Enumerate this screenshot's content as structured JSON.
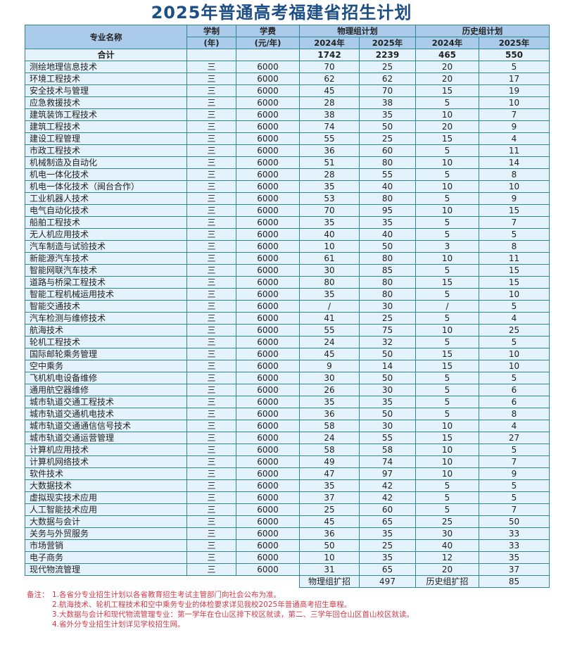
{
  "title": "2025年普通高考福建省招生计划",
  "header": {
    "name": "专业名称",
    "duration": "学制",
    "duration_unit": "(年)",
    "fee": "学费",
    "fee_unit": "(元/年)",
    "physics": "物理组计划",
    "history": "历史组计划",
    "y2024": "2024年",
    "y2025": "2025年"
  },
  "total": {
    "label": "合计",
    "phys2024": "1742",
    "phys2025": "2239",
    "hist2024": "465",
    "hist2025": "550"
  },
  "rows": [
    [
      "测绘地理信息技术",
      "三",
      "6000",
      "70",
      "25",
      "20",
      "5"
    ],
    [
      "环境工程技术",
      "三",
      "6000",
      "62",
      "62",
      "20",
      "17"
    ],
    [
      "安全技术与管理",
      "三",
      "6000",
      "45",
      "70",
      "15",
      "19"
    ],
    [
      "应急救援技术",
      "三",
      "6000",
      "28",
      "38",
      "5",
      "10"
    ],
    [
      "建筑装饰工程技术",
      "三",
      "6000",
      "38",
      "35",
      "10",
      "7"
    ],
    [
      "建筑工程技术",
      "三",
      "6000",
      "74",
      "50",
      "20",
      "9"
    ],
    [
      "建设工程管理",
      "三",
      "6000",
      "55",
      "25",
      "15",
      "4"
    ],
    [
      "市政工程技术",
      "三",
      "6000",
      "36",
      "60",
      "5",
      "11"
    ],
    [
      "机械制造及自动化",
      "三",
      "6000",
      "51",
      "80",
      "10",
      "14"
    ],
    [
      "机电一体化技术",
      "三",
      "6000",
      "28",
      "55",
      "5",
      "8"
    ],
    [
      "机电一体化技术（闽台合作）",
      "三",
      "6000",
      "35",
      "40",
      "10",
      "10"
    ],
    [
      "工业机器人技术",
      "三",
      "6000",
      "53",
      "80",
      "5",
      "9"
    ],
    [
      "电气自动化技术",
      "三",
      "6000",
      "70",
      "95",
      "10",
      "15"
    ],
    [
      "船舶工程技术",
      "三",
      "6000",
      "35",
      "35",
      "5",
      "7"
    ],
    [
      "无人机应用技术",
      "三",
      "6000",
      "40",
      "40",
      "5",
      "5"
    ],
    [
      "汽车制造与试验技术",
      "三",
      "6000",
      "10",
      "50",
      "3",
      "8"
    ],
    [
      "新能源汽车技术",
      "三",
      "6000",
      "61",
      "80",
      "10",
      "11"
    ],
    [
      "智能网联汽车技术",
      "三",
      "6000",
      "30",
      "85",
      "5",
      "15"
    ],
    [
      "道路与桥梁工程技术",
      "三",
      "6000",
      "80",
      "80",
      "15",
      "15"
    ],
    [
      "智能工程机械运用技术",
      "三",
      "6000",
      "35",
      "80",
      "5",
      "10"
    ],
    [
      "智能交通技术",
      "三",
      "6000",
      "/",
      "30",
      "/",
      "5"
    ],
    [
      "汽车检测与维修技术",
      "三",
      "6000",
      "41",
      "25",
      "5",
      "4"
    ],
    [
      "航海技术",
      "三",
      "6000",
      "55",
      "75",
      "10",
      "25"
    ],
    [
      "轮机工程技术",
      "三",
      "6000",
      "24",
      "32",
      "5",
      "5"
    ],
    [
      "国际邮轮乘务管理",
      "三",
      "6000",
      "45",
      "50",
      "15",
      "10"
    ],
    [
      "空中乘务",
      "三",
      "6000",
      "9",
      "14",
      "15",
      "10"
    ],
    [
      "飞机机电设备维修",
      "三",
      "6000",
      "30",
      "50",
      "5",
      "5"
    ],
    [
      "通用航空器维修",
      "三",
      "6000",
      "26",
      "30",
      "5",
      "6"
    ],
    [
      "城市轨道交通工程技术",
      "三",
      "6000",
      "35",
      "35",
      "5",
      "6"
    ],
    [
      "城市轨道交通机电技术",
      "三",
      "6000",
      "36",
      "50",
      "5",
      "8"
    ],
    [
      "城市轨道交通通信信号技术",
      "三",
      "6000",
      "58",
      "30",
      "10",
      "4"
    ],
    [
      "城市轨道交通运营管理",
      "三",
      "6000",
      "24",
      "55",
      "15",
      "27"
    ],
    [
      "计算机应用技术",
      "三",
      "6000",
      "58",
      "58",
      "10",
      "5"
    ],
    [
      "计算机网络技术",
      "三",
      "6000",
      "49",
      "74",
      "10",
      "7"
    ],
    [
      "软件技术",
      "三",
      "6000",
      "47",
      "97",
      "10",
      "9"
    ],
    [
      "大数据技术",
      "三",
      "6000",
      "35",
      "42",
      "5",
      "5"
    ],
    [
      "虚拟现实技术应用",
      "三",
      "6000",
      "37",
      "42",
      "5",
      "5"
    ],
    [
      "人工智能技术应用",
      "三",
      "6000",
      "25",
      "60",
      "5",
      "7"
    ],
    [
      "大数据与会计",
      "三",
      "6000",
      "45",
      "65",
      "25",
      "50"
    ],
    [
      "关务与外贸服务",
      "三",
      "6000",
      "36",
      "35",
      "30",
      "33"
    ],
    [
      "市场营销",
      "三",
      "6000",
      "50",
      "25",
      "40",
      "33"
    ],
    [
      "电子商务",
      "三",
      "6000",
      "10",
      "35",
      "12",
      "35"
    ],
    [
      "现代物流管理",
      "三",
      "6000",
      "31",
      "65",
      "20",
      "37"
    ]
  ],
  "expansion": {
    "phys_label": "物理组扩招",
    "phys_value": "497",
    "hist_label": "历史组扩招",
    "hist_value": "85"
  },
  "notes": {
    "label": "备注：",
    "items": [
      "1.各省分专业招生计划以各省教育招生考试主管部门向社会公布为准。",
      "2.航海技术、轮机工程技术和空中乘务专业的体检要求详见我校2025年普通高考招生章程。",
      "3.大数据与会计和现代物流管理专业：第一学年在仓山区排下校区就读，第二、三学年回仓山区首山校区就读。",
      "4.省外分专业招生计划详见学校招生网。"
    ]
  },
  "colors": {
    "title": "#1d4f86",
    "header_bg": "#aacbea",
    "cell_bg": "#e3f2fb",
    "border": "#2f8795",
    "notes": "#d23a4a"
  }
}
